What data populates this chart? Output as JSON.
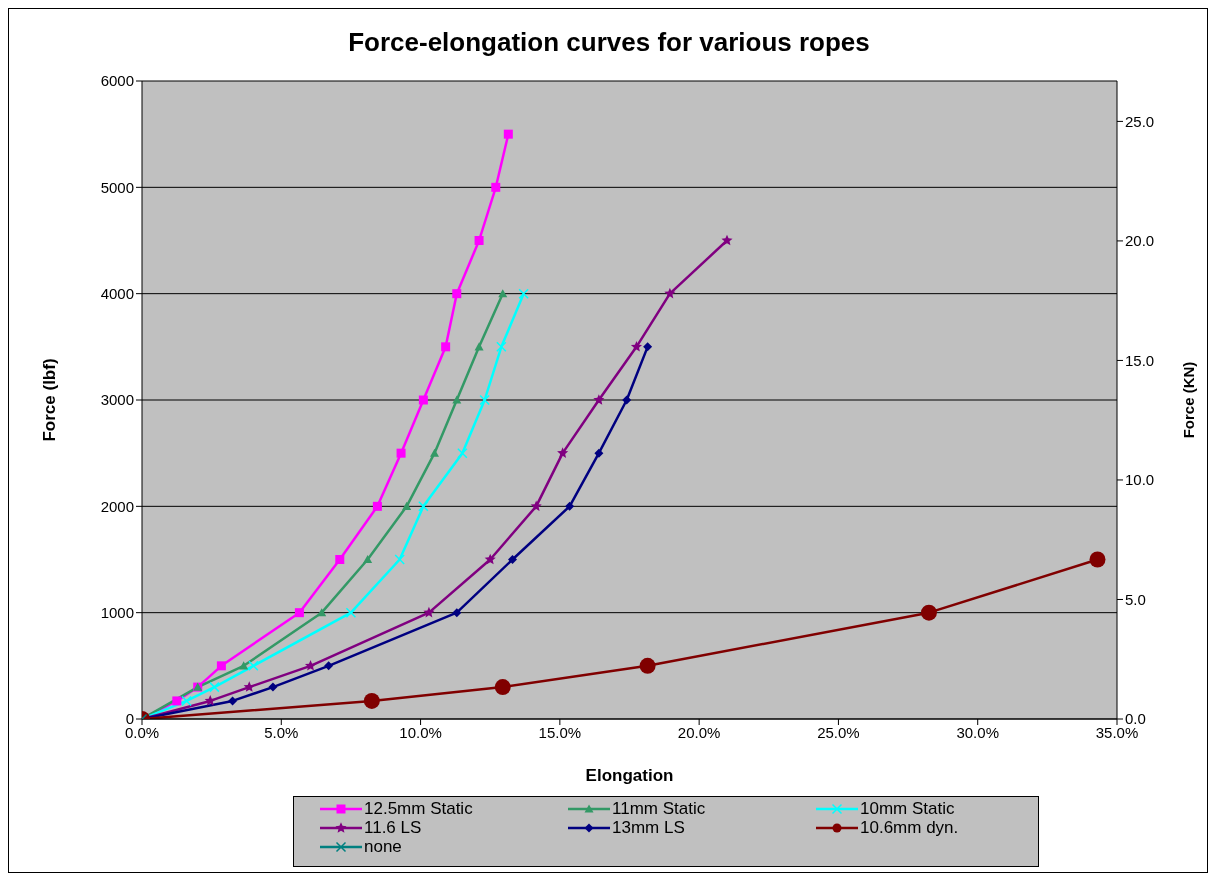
{
  "chart_data": {
    "type": "line",
    "title": "Force-elongation curves for various ropes",
    "xlabel": "Elongation",
    "ylabel": "Force (lbf)",
    "y2label": "Force (KN)",
    "xlim": [
      0,
      35
    ],
    "xticks": [
      {
        "value": 0,
        "label": "0.0%"
      },
      {
        "value": 5,
        "label": "5.0%"
      },
      {
        "value": 10,
        "label": "10.0%"
      },
      {
        "value": 15,
        "label": "15.0%"
      },
      {
        "value": 20,
        "label": "20.0%"
      },
      {
        "value": 25,
        "label": "25.0%"
      },
      {
        "value": 30,
        "label": "30.0%"
      },
      {
        "value": 35,
        "label": "35.0%"
      }
    ],
    "ylim": [
      0,
      6000
    ],
    "yticks": [
      0,
      1000,
      2000,
      3000,
      4000,
      5000,
      6000
    ],
    "y2lim": [
      0,
      26.69
    ],
    "y2ticks": [
      {
        "value": 0,
        "label": "0.0"
      },
      {
        "value": 5,
        "label": "5.0"
      },
      {
        "value": 10,
        "label": "10.0"
      },
      {
        "value": 15,
        "label": "15.0"
      },
      {
        "value": 20,
        "label": "20.0"
      },
      {
        "value": 25,
        "label": "25.0"
      }
    ],
    "grid": "y",
    "legend": "bottom",
    "series": [
      {
        "name": "12.5mm Static",
        "color": "#ff00ff",
        "marker": "square",
        "x": [
          0,
          1.25,
          2.0,
          2.85,
          5.65,
          7.1,
          8.45,
          9.3,
          10.1,
          10.9,
          11.3,
          12.1,
          12.7,
          13.15
        ],
        "values": [
          0,
          170,
          300,
          500,
          1000,
          1500,
          2000,
          2500,
          3000,
          3500,
          4000,
          4500,
          5000,
          5500
        ]
      },
      {
        "name": "11mm Static",
        "color": "#339966",
        "marker": "triangle",
        "x": [
          0,
          2.0,
          3.65,
          6.45,
          8.1,
          9.5,
          10.5,
          11.3,
          12.1,
          12.95
        ],
        "values": [
          0,
          300,
          500,
          1000,
          1500,
          2000,
          2500,
          3000,
          3500,
          4000
        ]
      },
      {
        "name": "10mm Static",
        "color": "#00ffff",
        "marker": "cross",
        "x": [
          0,
          1.6,
          2.6,
          4.0,
          7.5,
          9.25,
          10.1,
          11.5,
          12.3,
          12.9,
          13.7
        ],
        "values": [
          0,
          170,
          300,
          500,
          1000,
          1500,
          2000,
          2500,
          3000,
          3500,
          4000
        ]
      },
      {
        "name": "11.6 LS",
        "color": "#800080",
        "marker": "star",
        "x": [
          0,
          2.45,
          3.85,
          6.05,
          10.3,
          12.5,
          14.15,
          15.1,
          16.4,
          17.75,
          18.95,
          21.0
        ],
        "values": [
          0,
          170,
          300,
          500,
          1000,
          1500,
          2000,
          2500,
          3000,
          3500,
          4000,
          4500
        ]
      },
      {
        "name": "13mm LS",
        "color": "#000080",
        "marker": "diamond",
        "x": [
          0,
          3.25,
          4.7,
          6.7,
          11.3,
          13.3,
          15.35,
          16.4,
          17.4,
          18.15
        ],
        "values": [
          0,
          170,
          300,
          500,
          1000,
          1500,
          2000,
          2500,
          3000,
          3500
        ]
      },
      {
        "name": "10.6mm dyn.",
        "color": "#800000",
        "marker": "circle",
        "x": [
          0,
          8.25,
          12.95,
          18.15,
          28.25,
          34.3
        ],
        "values": [
          0,
          170,
          300,
          500,
          1000,
          1500
        ]
      },
      {
        "name": "none",
        "color": "#008080",
        "marker": "cross",
        "x": [
          0
        ],
        "values": [
          0
        ]
      }
    ]
  }
}
